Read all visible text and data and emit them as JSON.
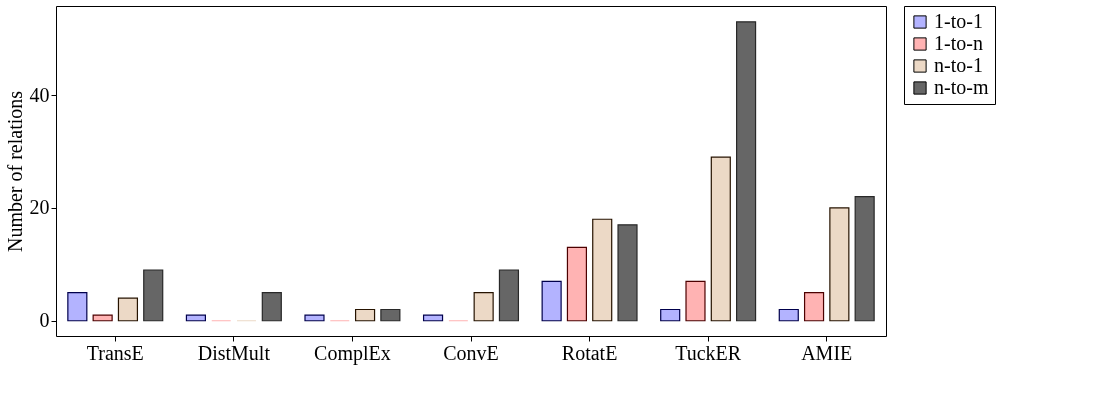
{
  "chart_data": {
    "type": "bar",
    "ylabel": "Number of relations",
    "categories": [
      "TransE",
      "DistMult",
      "ComplEx",
      "ConvE",
      "RotatE",
      "TuckER",
      "AMIE"
    ],
    "series": [
      {
        "name": "1-to-1",
        "color": "#b3b3ff",
        "values": [
          5,
          1,
          1,
          1,
          7,
          2,
          2
        ]
      },
      {
        "name": "1-to-n",
        "color": "#ffb3b3",
        "values": [
          1,
          0,
          0,
          0,
          13,
          7,
          5
        ]
      },
      {
        "name": "n-to-1",
        "color": "#ecd9c6",
        "values": [
          4,
          0,
          2,
          5,
          18,
          29,
          20
        ]
      },
      {
        "name": "n-to-m",
        "color": "#666666",
        "values": [
          9,
          5,
          2,
          9,
          17,
          53,
          22
        ]
      }
    ],
    "ylim": [
      -2.7,
      55.8
    ],
    "yticks": [
      0,
      20,
      40
    ],
    "grid": false,
    "legend": "right"
  }
}
